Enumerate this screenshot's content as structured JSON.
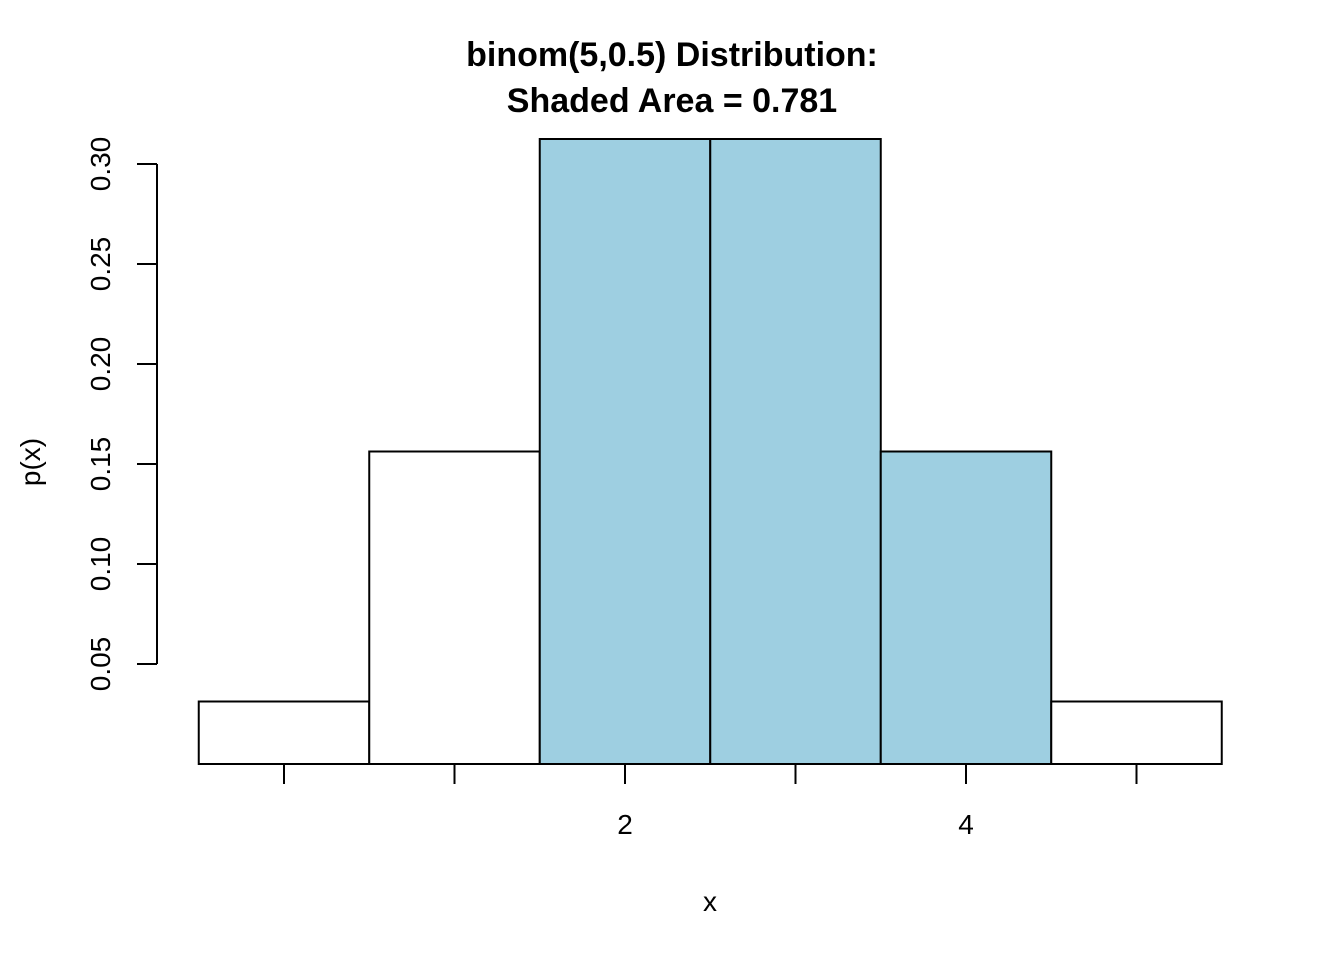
{
  "chart_data": {
    "type": "bar",
    "title": [
      "binom(5,0.5) Distribution:",
      "Shaded Area = 0.781"
    ],
    "xlabel": "x",
    "ylabel": "p(x)",
    "x": [
      0,
      1,
      2,
      3,
      4,
      5
    ],
    "values": [
      0.03125,
      0.15625,
      0.3125,
      0.3125,
      0.15625,
      0.03125
    ],
    "shaded": [
      false,
      false,
      true,
      true,
      true,
      false
    ],
    "xlim": [
      -0.5,
      5.5
    ],
    "ylim": [
      0,
      0.3125
    ],
    "x_ticks": [
      0,
      1,
      2,
      3,
      4,
      5
    ],
    "x_tick_labels": [
      "",
      "",
      "2",
      "",
      "4",
      ""
    ],
    "y_ticks": [
      0.05,
      0.1,
      0.15,
      0.2,
      0.25,
      0.3
    ],
    "y_tick_labels": [
      "0.05",
      "0.10",
      "0.15",
      "0.20",
      "0.25",
      "0.30"
    ],
    "grid": false,
    "colors": {
      "shaded": "#9ecfe1",
      "unshaded": "#ffffff",
      "stroke": "#000000"
    }
  }
}
